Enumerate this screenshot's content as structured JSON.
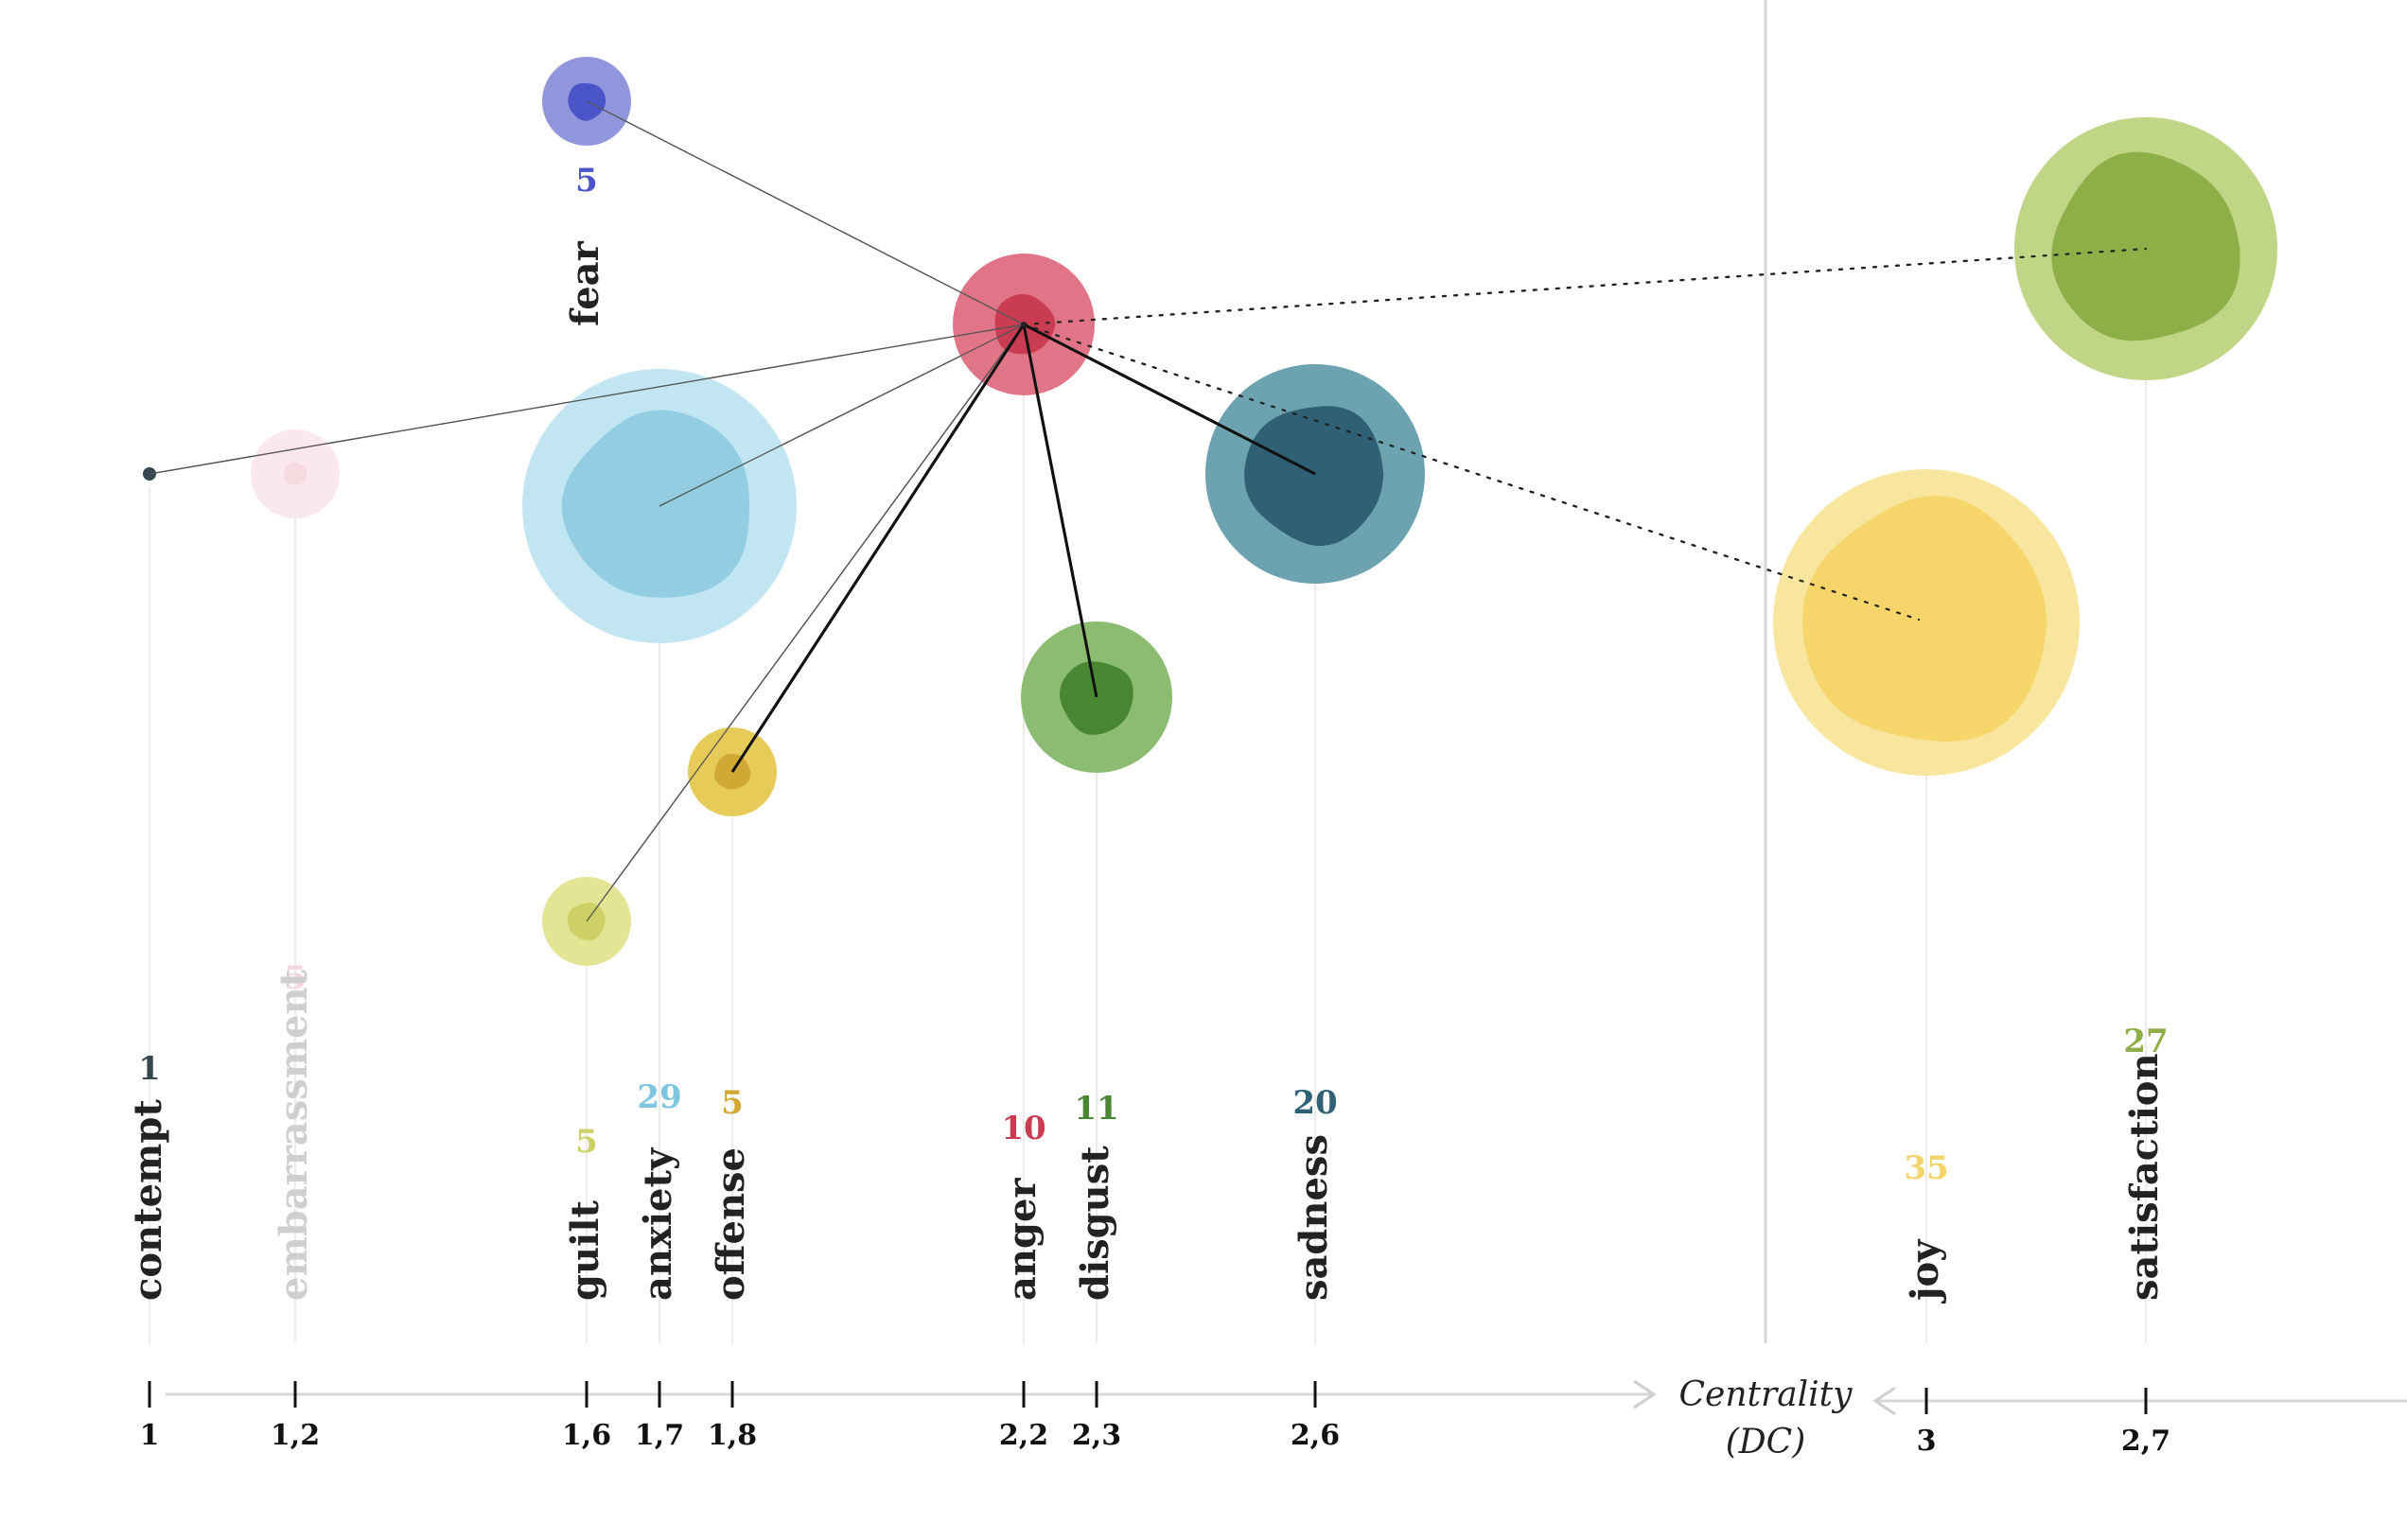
{
  "chart_data": {
    "type": "bubble-network",
    "title": "",
    "axis_title_line1": "Centrality",
    "axis_title_line2": "(DC)",
    "hub": "anger",
    "emotions": [
      {
        "name": "contempt",
        "centrality": 1,
        "tick": "1",
        "count": 1,
        "count_label": "1",
        "color": "#37474f",
        "color_outer": "#37474f",
        "label_color": "#222222",
        "count_color": "#37474f"
      },
      {
        "name": "embarrassment",
        "centrality": 1.2,
        "tick": "1,2",
        "count": 5,
        "count_label": "5",
        "color": "#f3c9d1",
        "color_outer": "#fae7eb",
        "label_color": "#cfcfcf",
        "count_color": "#f4d6dc"
      },
      {
        "name": "fear",
        "centrality": 1.6,
        "tick": "",
        "count": 5,
        "count_label": "5",
        "color": "#4a55c9",
        "color_outer": "#8a90da",
        "label_color": "#222222",
        "count_color": "#4a55c9"
      },
      {
        "name": "guilt",
        "centrality": 1.6,
        "tick": "1,6",
        "count": 5,
        "count_label": "5",
        "color": "#cdd165",
        "color_outer": "#e2e48f",
        "label_color": "#222222",
        "count_color": "#cdd165"
      },
      {
        "name": "anxiety",
        "centrality": 1.7,
        "tick": "1,7",
        "count": 29,
        "count_label": "29",
        "color": "#93cde2",
        "color_outer": "#bfe5f0",
        "label_color": "#222222",
        "count_color": "#7ec5df"
      },
      {
        "name": "offense",
        "centrality": 1.8,
        "tick": "1,8",
        "count": 5,
        "count_label": "5",
        "color": "#d2a835",
        "color_outer": "#e5c84f",
        "label_color": "#222222",
        "count_color": "#d2a835"
      },
      {
        "name": "anger",
        "centrality": 2.2,
        "tick": "2,2",
        "count": 10,
        "count_label": "10",
        "color": "#c93c52",
        "color_outer": "#df6e82",
        "label_color": "#222222",
        "count_color": "#c93c52"
      },
      {
        "name": "disgust",
        "centrality": 2.3,
        "tick": "2,3",
        "count": 11,
        "count_label": "11",
        "color": "#4a8733",
        "color_outer": "#85b86a",
        "label_color": "#222222",
        "count_color": "#4a8733"
      },
      {
        "name": "sadness",
        "centrality": 2.6,
        "tick": "2,6",
        "count": 20,
        "count_label": "20",
        "color": "#2f6075",
        "color_outer": "#659dac",
        "label_color": "#222222",
        "count_color": "#2f6075"
      },
      {
        "name": "joy",
        "centrality": 3,
        "tick": "3",
        "count": 35,
        "count_label": "35",
        "color": "#f6d56b",
        "color_outer": "#f8e59a",
        "label_color": "#222222",
        "count_color": "#f3d36a"
      },
      {
        "name": "satisfaction",
        "centrality": 2.7,
        "tick": "2,7",
        "count": 27,
        "count_label": "27",
        "color": "#8eaf47",
        "color_outer": "#bed37f",
        "label_color": "#222222",
        "count_color": "#8eaf47"
      }
    ],
    "links": [
      {
        "target": "contempt",
        "style": "thin"
      },
      {
        "target": "fear",
        "style": "thin"
      },
      {
        "target": "anxiety",
        "style": "thin"
      },
      {
        "target": "guilt",
        "style": "thin"
      },
      {
        "target": "offense",
        "style": "solid"
      },
      {
        "target": "disgust",
        "style": "solid"
      },
      {
        "target": "sadness",
        "style": "solid"
      },
      {
        "target": "joy",
        "style": "dotted"
      },
      {
        "target": "satisfaction",
        "style": "dotted"
      }
    ]
  }
}
